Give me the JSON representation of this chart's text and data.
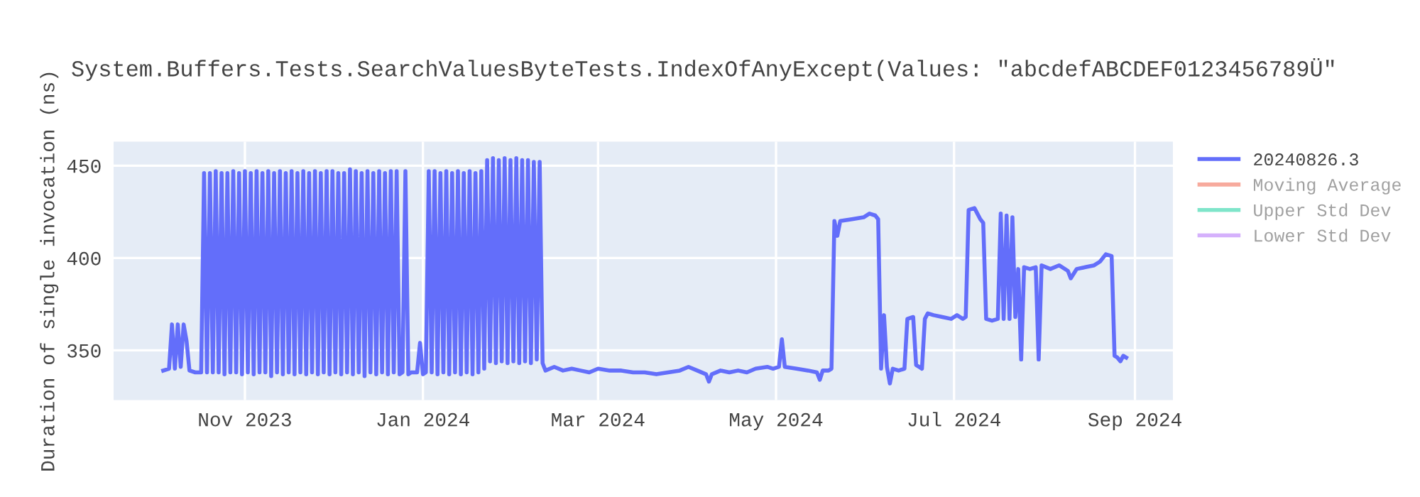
{
  "chart_data": {
    "type": "line",
    "title": "System.Buffers.Tests.SearchValuesByteTests.IndexOfAnyExcept(Values: \"abcdefABCDEF0123456789Ü\"",
    "ylabel": "Duration of single invocation (ns)",
    "xlim": [
      "2023-09-17",
      "2024-09-14"
    ],
    "xticks": [
      {
        "value": "2023-11-01",
        "label": "Nov 2023"
      },
      {
        "value": "2024-01-01",
        "label": "Jan 2024"
      },
      {
        "value": "2024-03-01",
        "label": "Mar 2024"
      },
      {
        "value": "2024-05-01",
        "label": "May 2024"
      },
      {
        "value": "2024-07-01",
        "label": "Jul 2024"
      },
      {
        "value": "2024-09-01",
        "label": "Sep 2024"
      }
    ],
    "ylim": [
      323,
      463
    ],
    "yticks": [
      350,
      400,
      450
    ],
    "grid": true,
    "legend": "top right",
    "marker": "none",
    "line_style": "solid",
    "series": [
      {
        "name": "20240826.3",
        "color": "#636efa",
        "x": [
          "2023-10-04",
          "2023-10-06",
          "2023-10-07",
          "2023-10-08",
          "2023-10-09",
          "2023-10-10",
          "2023-10-11",
          "2023-10-12",
          "2023-10-13",
          "2023-10-15",
          "2023-10-17",
          "2023-10-18",
          "2023-10-19",
          "2023-10-20",
          "2023-10-21",
          "2023-10-22",
          "2023-10-23",
          "2023-10-24",
          "2023-10-25",
          "2023-10-26",
          "2023-10-27",
          "2023-10-28",
          "2023-10-29",
          "2023-10-30",
          "2023-10-31",
          "2023-11-01",
          "2023-11-02",
          "2023-11-03",
          "2023-11-04",
          "2023-11-05",
          "2023-11-06",
          "2023-11-07",
          "2023-11-08",
          "2023-11-09",
          "2023-11-10",
          "2023-11-11",
          "2023-11-12",
          "2023-11-13",
          "2023-11-14",
          "2023-11-15",
          "2023-11-16",
          "2023-11-17",
          "2023-11-18",
          "2023-11-19",
          "2023-11-20",
          "2023-11-21",
          "2023-11-22",
          "2023-11-23",
          "2023-11-24",
          "2023-11-25",
          "2023-11-26",
          "2023-11-27",
          "2023-11-28",
          "2023-11-29",
          "2023-11-30",
          "2023-12-01",
          "2023-12-02",
          "2023-12-03",
          "2023-12-04",
          "2023-12-05",
          "2023-12-06",
          "2023-12-07",
          "2023-12-08",
          "2023-12-09",
          "2023-12-10",
          "2023-12-11",
          "2023-12-12",
          "2023-12-13",
          "2023-12-14",
          "2023-12-15",
          "2023-12-16",
          "2023-12-17",
          "2023-12-18",
          "2023-12-19",
          "2023-12-20",
          "2023-12-21",
          "2023-12-22",
          "2023-12-23",
          "2023-12-24",
          "2023-12-25",
          "2023-12-26",
          "2023-12-27",
          "2023-12-28",
          "2023-12-29",
          "2023-12-30",
          "2023-12-31",
          "2024-01-01",
          "2024-01-02",
          "2024-01-03",
          "2024-01-04",
          "2024-01-05",
          "2024-01-06",
          "2024-01-07",
          "2024-01-08",
          "2024-01-09",
          "2024-01-10",
          "2024-01-11",
          "2024-01-12",
          "2024-01-13",
          "2024-01-14",
          "2024-01-15",
          "2024-01-16",
          "2024-01-17",
          "2024-01-18",
          "2024-01-19",
          "2024-01-20",
          "2024-01-21",
          "2024-01-22",
          "2024-01-23",
          "2024-01-24",
          "2024-01-25",
          "2024-01-26",
          "2024-01-27",
          "2024-01-28",
          "2024-01-29",
          "2024-01-30",
          "2024-01-31",
          "2024-02-01",
          "2024-02-02",
          "2024-02-03",
          "2024-02-04",
          "2024-02-05",
          "2024-02-06",
          "2024-02-07",
          "2024-02-08",
          "2024-02-09",
          "2024-02-10",
          "2024-02-11",
          "2024-02-12",
          "2024-02-15",
          "2024-02-18",
          "2024-02-21",
          "2024-02-24",
          "2024-02-27",
          "2024-03-01",
          "2024-03-05",
          "2024-03-09",
          "2024-03-13",
          "2024-03-17",
          "2024-03-21",
          "2024-03-25",
          "2024-03-29",
          "2024-04-01",
          "2024-04-04",
          "2024-04-07",
          "2024-04-08",
          "2024-04-09",
          "2024-04-12",
          "2024-04-15",
          "2024-04-18",
          "2024-04-21",
          "2024-04-24",
          "2024-04-28",
          "2024-04-30",
          "2024-05-02",
          "2024-05-03",
          "2024-05-04",
          "2024-05-08",
          "2024-05-12",
          "2024-05-15",
          "2024-05-16",
          "2024-05-17",
          "2024-05-19",
          "2024-05-20",
          "2024-05-21",
          "2024-05-22",
          "2024-05-23",
          "2024-05-27",
          "2024-05-31",
          "2024-06-02",
          "2024-06-04",
          "2024-06-05",
          "2024-06-06",
          "2024-06-07",
          "2024-06-08",
          "2024-06-09",
          "2024-06-10",
          "2024-06-12",
          "2024-06-14",
          "2024-06-15",
          "2024-06-17",
          "2024-06-18",
          "2024-06-19",
          "2024-06-20",
          "2024-06-21",
          "2024-06-22",
          "2024-06-24",
          "2024-06-27",
          "2024-06-30",
          "2024-07-02",
          "2024-07-04",
          "2024-07-05",
          "2024-07-06",
          "2024-07-08",
          "2024-07-10",
          "2024-07-11",
          "2024-07-12",
          "2024-07-14",
          "2024-07-16",
          "2024-07-17",
          "2024-07-18",
          "2024-07-19",
          "2024-07-20",
          "2024-07-21",
          "2024-07-22",
          "2024-07-23",
          "2024-07-24",
          "2024-07-25",
          "2024-07-27",
          "2024-07-29",
          "2024-07-30",
          "2024-07-31",
          "2024-08-03",
          "2024-08-06",
          "2024-08-09",
          "2024-08-10",
          "2024-08-12",
          "2024-08-15",
          "2024-08-18",
          "2024-08-20",
          "2024-08-22",
          "2024-08-24",
          "2024-08-25",
          "2024-08-26",
          "2024-08-27",
          "2024-08-28",
          "2024-08-29"
        ],
        "values": [
          339,
          340,
          364,
          340,
          364,
          341,
          364,
          355,
          339,
          338,
          338,
          446,
          338,
          446,
          338,
          447,
          338,
          446,
          337,
          446,
          338,
          447,
          338,
          446,
          337,
          447,
          338,
          446,
          337,
          447,
          338,
          446,
          338,
          447,
          336,
          446,
          338,
          447,
          337,
          446,
          338,
          447,
          337,
          446,
          338,
          447,
          337,
          446,
          338,
          447,
          337,
          446,
          338,
          447,
          337,
          447,
          338,
          446,
          337,
          446,
          338,
          448,
          337,
          447,
          338,
          446,
          336,
          447,
          338,
          446,
          337,
          447,
          338,
          446,
          337,
          447,
          338,
          447,
          337,
          338,
          447,
          337,
          338,
          338,
          338,
          354,
          337,
          338,
          447,
          338,
          447,
          337,
          446,
          338,
          447,
          337,
          446,
          338,
          447,
          337,
          446,
          338,
          447,
          337,
          446,
          338,
          447,
          340,
          453,
          344,
          454,
          343,
          453,
          344,
          454,
          343,
          453,
          344,
          454,
          343,
          453,
          344,
          453,
          343,
          452,
          345,
          452,
          343,
          339,
          341,
          339,
          340,
          339,
          338,
          340,
          339,
          339,
          338,
          338,
          337,
          338,
          339,
          341,
          339,
          337,
          333,
          337,
          339,
          338,
          339,
          338,
          340,
          341,
          340,
          341,
          356,
          341,
          340,
          339,
          338,
          334,
          339,
          339,
          340,
          420,
          412,
          420,
          421,
          422,
          424,
          423,
          421,
          340,
          369,
          341,
          332,
          340,
          339,
          340,
          367,
          368,
          342,
          341,
          340,
          367,
          370,
          369,
          368,
          367,
          369,
          367,
          368,
          426,
          427,
          421,
          419,
          367,
          366,
          367,
          424,
          367,
          423,
          367,
          422,
          368,
          394,
          345,
          395,
          394,
          395,
          345,
          396,
          394,
          396,
          393,
          389,
          394,
          395,
          396,
          398,
          402,
          401,
          347,
          346,
          344,
          347,
          346
        ]
      },
      {
        "name": "Moving Average",
        "color": "#ef553b"
      },
      {
        "name": "Upper Std Dev",
        "color": "#00cc96"
      },
      {
        "name": "Lower Std Dev",
        "color": "#ab63fa"
      }
    ]
  }
}
